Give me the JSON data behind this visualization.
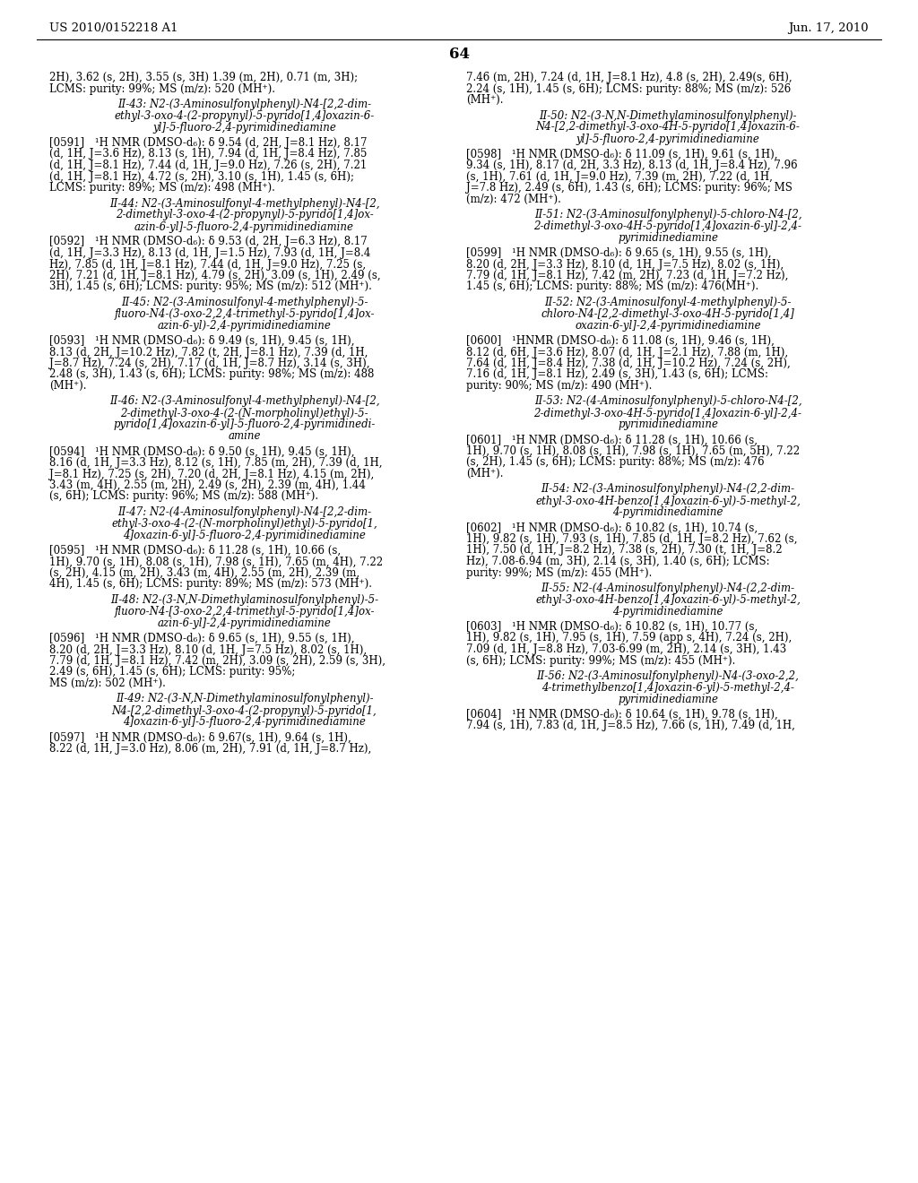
{
  "header_left": "US 2010/0152218 A1",
  "header_right": "Jun. 17, 2010",
  "page_number": "64",
  "background_color": "#ffffff",
  "text_color": "#000000",
  "font_size_body": 8.5,
  "font_size_header": 9.5,
  "font_size_page": 12,
  "left_column": [
    {
      "type": "body",
      "text": "2H), 3.62 (s, 2H), 3.55 (s, 3H) 1.39 (m, 2H), 0.71 (m, 3H);\nLCMS: purity: 99%; MS (m/z): 520 (MH⁺)."
    },
    {
      "type": "title",
      "text": "II-43: N2-(3-Aminosulfonylphenyl)-N4-[2,2-dim-\nethyl-3-oxo-4-(2-propynyl)-5-pyrido[1,4]oxazin-6-\nyl]-5-fluoro-2,4-pyrimidinediamine"
    },
    {
      "type": "body",
      "text": "[0591] ¹H NMR (DMSO-d₆): δ 9.54 (d, 2H, J=8.1 Hz), 8.17\n(d, 1H, J=3.6 Hz), 8.13 (s, 1H), 7.94 (d, 1H, J=8.4 Hz), 7.85\n(d, 1H, J=8.1 Hz), 7.44 (d, 1H, J=9.0 Hz), 7.26 (s, 2H), 7.21\n(d, 1H, J=8.1 Hz), 4.72 (s, 2H), 3.10 (s, 1H), 1.45 (s, 6H);\nLCMS: purity: 89%; MS (m/z): 498 (MH⁺)."
    },
    {
      "type": "title",
      "text": "II-44: N2-(3-Aminosulfonyl-4-methylphenyl)-N4-[2,\n2-dimethyl-3-oxo-4-(2-propynyl)-5-pyrido[1,4]ox-\nazin-6-yl]-5-fluoro-2,4-pyrimidinediamine"
    },
    {
      "type": "body",
      "text": "[0592] ¹H NMR (DMSO-d₆): δ 9.53 (d, 2H, J=6.3 Hz), 8.17\n(d, 1H, J=3.3 Hz), 8.13 (d, 1H, J=1.5 Hz), 7.93 (d, 1H, J=8.4\nHz), 7.85 (d, 1H, J=8.1 Hz), 7.44 (d, 1H, J=9.0 Hz), 7.25 (s,\n2H), 7.21 (d, 1H, J=8.1 Hz), 4.79 (s, 2H), 3.09 (s, 1H), 2.49 (s,\n3H), 1.45 (s, 6H); LCMS: purity: 95%; MS (m/z): 512 (MH⁺)."
    },
    {
      "type": "title",
      "text": "II-45: N2-(3-Aminosulfonyl-4-methylphenyl)-5-\nfluoro-N4-(3-oxo-2,2,4-trimethyl-5-pyrido[1,4]ox-\nazin-6-yl)-2,4-pyrimidinediamine"
    },
    {
      "type": "body",
      "text": "[0593] ¹H NMR (DMSO-d₆): δ 9.49 (s, 1H), 9.45 (s, 1H),\n8.13 (d, 2H, J=10.2 Hz), 7.82 (t, 2H, J=8.1 Hz), 7.39 (d, 1H,\nJ=8.7 Hz), 7.24 (s, 2H), 7.17 (d, 1H, J=8.7 Hz), 3.14 (s, 3H),\n2.48 (s, 3H), 1.43 (s, 6H); LCMS: purity: 98%; MS (m/z): 488\n(MH⁺)."
    },
    {
      "type": "title",
      "text": "II-46: N2-(3-Aminosulfonyl-4-methylphenyl)-N4-[2,\n2-dimethyl-3-oxo-4-(2-(N-morpholinyl)ethyl)-5-\npyrido[1,4]oxazin-6-yl]-5-fluoro-2,4-pyrimidinedi-\namine"
    },
    {
      "type": "body",
      "text": "[0594] ¹H NMR (DMSO-d₆): δ 9.50 (s, 1H), 9.45 (s, 1H),\n8.16 (d, 1H, J=3.3 Hz), 8.12 (s, 1H), 7.85 (m, 2H), 7.39 (d, 1H,\nJ=8.1 Hz), 7.25 (s, 2H), 7.20 (d, 2H, J=8.1 Hz), 4.15 (m, 2H),\n3.43 (m, 4H), 2.55 (m, 2H), 2.49 (s, 2H), 2.39 (m, 4H), 1.44\n(s, 6H); LCMS: purity: 96%; MS (m/z): 588 (MH⁺)."
    },
    {
      "type": "title",
      "text": "II-47: N2-(4-Aminosulfonylphenyl)-N4-[2,2-dim-\nethyl-3-oxo-4-(2-(N-morpholinyl)ethyl)-5-pyrido[1,\n4]oxazin-6-yl]-5-fluoro-2,4-pyrimidinediamine"
    },
    {
      "type": "body",
      "text": "[0595] ¹H NMR (DMSO-d₆): δ 11.28 (s, 1H), 10.66 (s,\n1H), 9.70 (s, 1H), 8.08 (s, 1H), 7.98 (s, 1H), 7.65 (m, 4H), 7.22\n(s, 2H), 4.15 (m, 2H), 3.43 (m, 4H), 2.55 (m, 2H), 2.39 (m,\n4H), 1.45 (s, 6H); LCMS: purity: 89%; MS (m/z): 573 (MH⁺)."
    },
    {
      "type": "title",
      "text": "II-48: N2-(3-N,N-Dimethylaminosulfonylphenyl)-5-\nfluoro-N4-[3-oxo-2,2,4-trimethyl-5-pyrido[1,4]ox-\nazin-6-yl]-2,4-pyrimidinediamine"
    },
    {
      "type": "body",
      "text": "[0596] ¹H NMR (DMSO-d₆): δ 9.65 (s, 1H), 9.55 (s, 1H),\n8.20 (d, 2H, J=3.3 Hz), 8.10 (d, 1H, J=7.5 Hz), 8.02 (s, 1H),\n7.79 (d, 1H, J=8.1 Hz), 7.42 (m, 2H), 3.09 (s, 2H), 2.59 (s, 3H),\n2.49 (s, 6H), 1.45 (s, 6H); LCMS: purity: 95%;\nMS (m/z): 502 (MH⁺)."
    },
    {
      "type": "title",
      "text": "II-49: N2-(3-N,N-Dimethylaminosulfonylphenyl)-\nN4-[2,2-dimethyl-3-oxo-4-(2-propynyl)-5-pyrido[1,\n4]oxazin-6-yl]-5-fluoro-2,4-pyrimidinediamine"
    },
    {
      "type": "body_partial",
      "text": "[0597] ¹H NMR (DMSO-d₆): δ 9.67(s, 1H), 9.64 (s, 1H),\n8.22 (d, 1H, J=3.0 Hz), 8.06 (m, 2H), 7.91 (d, 1H, J=8.7 Hz),"
    }
  ],
  "right_column": [
    {
      "type": "body",
      "text": "7.46 (m, 2H), 7.24 (d, 1H, J=8.1 Hz), 4.8 (s, 2H), 2.49(s, 6H),\n2.24 (s, 1H), 1.45 (s, 6H); LCMS: purity: 88%; MS (m/z): 526\n(MH⁺)."
    },
    {
      "type": "title",
      "text": "II-50: N2-(3-N,N-Dimethylaminosulfonylphenyl)-\nN4-[2,2-dimethyl-3-oxo-4H-5-pyrido[1,4]oxazin-6-\nyl]-5-fluoro-2,4-pyrimidinediamine"
    },
    {
      "type": "body",
      "text": "[0598] ¹H NMR (DMSO-d₆): δ 11.09 (s, 1H), 9.61 (s, 1H),\n9.34 (s, 1H), 8.17 (d, 2H, 3.3 Hz), 8.13 (d, 1H, J=8.4 Hz), 7.96\n(s, 1H), 7.61 (d, 1H, J=9.0 Hz), 7.39 (m, 2H), 7.22 (d, 1H,\nJ=7.8 Hz), 2.49 (s, 6H), 1.43 (s, 6H); LCMS: purity: 96%; MS\n(m/z): 472 (MH⁺)."
    },
    {
      "type": "title",
      "text": "II-51: N2-(3-Aminosulfonylphenyl)-5-chloro-N4-[2,\n2-dimethyl-3-oxo-4H-5-pyrido[1,4]oxazin-6-yl]-2,4-\npyrimidinediamine"
    },
    {
      "type": "body",
      "text": "[0599] ¹H NMR (DMSO-d₆): δ 9.65 (s, 1H), 9.55 (s, 1H),\n8.20 (d, 2H, J=3.3 Hz), 8.10 (d, 1H, J=7.5 Hz), 8.02 (s, 1H),\n7.79 (d, 1H, J=8.1 Hz), 7.42 (m, 2H), 7.23 (d, 1H, J=7.2 Hz),\n1.45 (s, 6H); LCMS: purity: 88%; MS (m/z): 476(MH⁺)."
    },
    {
      "type": "title",
      "text": "II-52: N2-(3-Aminosulfonyl-4-methylphenyl)-5-\nchloro-N4-[2,2-dimethyl-3-oxo-4H-5-pyrido[1,4]\noxazin-6-yl]-2,4-pyrimidinediamine"
    },
    {
      "type": "body",
      "text": "[0600] ¹HNMR (DMSO-d₆): δ 11.08 (s, 1H), 9.46 (s, 1H),\n8.12 (d, 6H, J=3.6 Hz), 8.07 (d, 1H, J=2.1 Hz), 7.88 (m, 1H),\n7.64 (d, 1H, J=8.4 Hz), 7.38 (d, 1H, J=10.2 Hz), 7.24 (s, 2H),\n7.16 (d, 1H, J=8.1 Hz), 2.49 (s, 3H), 1.43 (s, 6H); LCMS:\npurity: 90%; MS (m/z): 490 (MH⁺)."
    },
    {
      "type": "title",
      "text": "II-53: N2-(4-Aminosulfonylphenyl)-5-chloro-N4-[2,\n2-dimethyl-3-oxo-4H-5-pyrido[1,4]oxazin-6-yl]-2,4-\npyrimidinediamine"
    },
    {
      "type": "body",
      "text": "[0601] ¹H NMR (DMSO-d₆): δ 11.28 (s, 1H), 10.66 (s,\n1H), 9.70 (s, 1H), 8.08 (s, 1H), 7.98 (s, 1H), 7.65 (m, 5H), 7.22\n(s, 2H), 1.45 (s, 6H); LCMS: purity: 88%; MS (m/z): 476\n(MH⁺)."
    },
    {
      "type": "title",
      "text": "II-54: N2-(3-Aminosulfonylphenyl)-N4-(2,2-dim-\nethyl-3-oxo-4H-benzo[1,4]oxazin-6-yl)-5-methyl-2,\n4-pyrimidinediamine"
    },
    {
      "type": "body",
      "text": "[0602] ¹H NMR (DMSO-d₆): δ 10.82 (s, 1H), 10.74 (s,\n1H), 9.82 (s, 1H), 7.93 (s, 1H), 7.85 (d, 1H, J=8.2 Hz), 7.62 (s,\n1H), 7.50 (d, 1H, J=8.2 Hz), 7.38 (s, 2H), 7.30 (t, 1H, J=8.2\nHz), 7.08-6.94 (m, 3H), 2.14 (s, 3H), 1.40 (s, 6H); LCMS:\npurity: 99%; MS (m/z): 455 (MH⁺)."
    },
    {
      "type": "title",
      "text": "II-55: N2-(4-Aminosulfonylphenyl)-N4-(2,2-dim-\nethyl-3-oxo-4H-benzo[1,4]oxazin-6-yl)-5-methyl-2,\n4-pyrimidinediamine"
    },
    {
      "type": "body",
      "text": "[0603] ¹H NMR (DMSO-d₆): δ 10.82 (s, 1H), 10.77 (s,\n1H), 9.82 (s, 1H), 7.95 (s, 1H), 7.59 (app s, 4H), 7.24 (s, 2H),\n7.09 (d, 1H, J=8.8 Hz), 7.03-6.99 (m, 2H), 2.14 (s, 3H), 1.43\n(s, 6H); LCMS: purity: 99%; MS (m/z): 455 (MH⁺)."
    },
    {
      "type": "title",
      "text": "II-56: N2-(3-Aminosulfonylphenyl)-N4-(3-oxo-2,2,\n4-trimethylbenzo[1,4]oxazin-6-yl)-5-methyl-2,4-\npyrimidinediamine"
    },
    {
      "type": "body_partial",
      "text": "[0604] ¹H NMR (DMSO-d₆): δ 10.64 (s, 1H), 9.78 (s, 1H),\n7.94 (s, 1H), 7.83 (d, 1H, J=8.5 Hz), 7.66 (s, 1H), 7.49 (d, 1H,"
    }
  ]
}
